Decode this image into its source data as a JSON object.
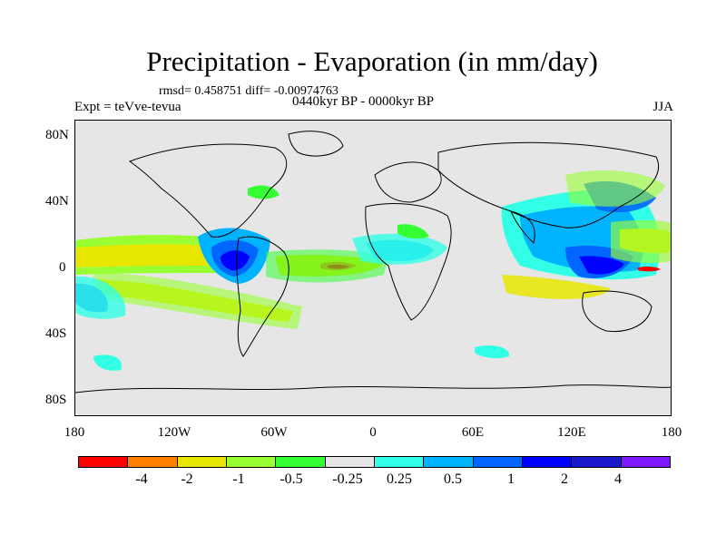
{
  "header": {
    "title": "Precipitation - Evaporation (in mm/day)",
    "stats": "rmsd= 0.458751 diff= -0.00974763",
    "experiment": "Expt = teVve-tevua",
    "period": "0440kyr BP - 0000kyr BP",
    "season": "JJA"
  },
  "axes": {
    "lat_labels": [
      "80N",
      "40N",
      "0",
      "40S",
      "80S"
    ],
    "lon_labels": [
      "180",
      "120W",
      "60W",
      "0",
      "60E",
      "120E",
      "180"
    ]
  },
  "legend": {
    "colors": [
      "#ff0000",
      "#ff7f00",
      "#e6e600",
      "#99ff33",
      "#33ff33",
      "#e6e6e6",
      "#33ffe6",
      "#00b3ff",
      "#0066ff",
      "#0000ff",
      "#1a1acc",
      "#7f1aff"
    ],
    "labels": [
      "-4",
      "-2",
      "-1",
      "-0.5",
      "-0.25",
      "0.25",
      "0.5",
      "1",
      "2",
      "4"
    ]
  }
}
